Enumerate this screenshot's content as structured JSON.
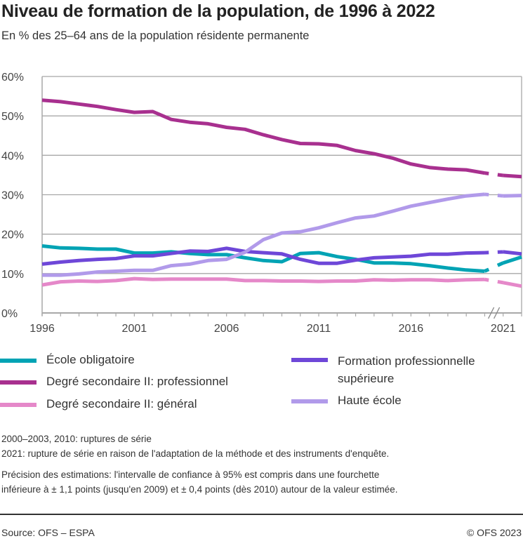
{
  "header": {
    "title": "Niveau de formation de la population, de 1996 à 2022",
    "subtitle": "En % des 25–64 ans de la population résidente permanente"
  },
  "chart_data": {
    "type": "line",
    "title": "Niveau de formation de la population, de 1996 à 2022",
    "subtitle": "En % des 25–64 ans de la population résidente permanente",
    "xlabel": "",
    "ylabel": "",
    "x": [
      1996,
      1997,
      1998,
      1999,
      2000,
      2001,
      2002,
      2003,
      2004,
      2005,
      2006,
      2007,
      2008,
      2009,
      2010,
      2011,
      2012,
      2013,
      2014,
      2015,
      2016,
      2017,
      2018,
      2019,
      2020,
      2021,
      2022
    ],
    "x_tick_labels": [
      "1996",
      "2001",
      "2006",
      "2011",
      "2016",
      "2021"
    ],
    "y_tick_labels": [
      "0%",
      "10%",
      "20%",
      "30%",
      "40%",
      "50%",
      "60%"
    ],
    "ylim": [
      0,
      60
    ],
    "grid": true,
    "axis_break": "2020–2021",
    "legend_position": "bottom",
    "series": [
      {
        "name": "École obligatoire",
        "color": "#00a3b4",
        "values": [
          17.0,
          16.5,
          16.4,
          16.2,
          16.2,
          15.2,
          15.2,
          15.5,
          15.1,
          14.8,
          14.8,
          14.0,
          13.3,
          13.0,
          15.1,
          15.3,
          14.3,
          13.6,
          12.7,
          12.7,
          12.5,
          12.0,
          11.4,
          10.9,
          10.6,
          12.7,
          14.2
        ]
      },
      {
        "name": "Degré secondaire II: professionnel",
        "color": "#a8308f",
        "values": [
          54.0,
          53.6,
          53.0,
          52.4,
          51.6,
          50.9,
          51.1,
          49.1,
          48.4,
          48.0,
          47.1,
          46.6,
          45.2,
          44.0,
          43.0,
          42.9,
          42.5,
          41.2,
          40.4,
          39.3,
          37.8,
          36.9,
          36.5,
          36.3,
          35.5,
          34.9,
          34.6
        ]
      },
      {
        "name": "Degré secondaire II: général",
        "color": "#e588c9",
        "values": [
          7.1,
          7.9,
          8.1,
          8.0,
          8.2,
          8.7,
          8.5,
          8.6,
          8.6,
          8.6,
          8.6,
          8.2,
          8.2,
          8.1,
          8.1,
          8.0,
          8.1,
          8.1,
          8.4,
          8.3,
          8.4,
          8.4,
          8.2,
          8.4,
          8.5,
          7.7,
          6.8
        ]
      },
      {
        "name": "Formation professionnelle supérieure",
        "color": "#6e47d8",
        "values": [
          12.4,
          12.9,
          13.3,
          13.6,
          13.8,
          14.5,
          14.5,
          15.1,
          15.7,
          15.6,
          16.4,
          15.6,
          15.3,
          15.0,
          13.6,
          12.6,
          12.6,
          13.4,
          14.0,
          14.2,
          14.4,
          14.9,
          14.9,
          15.2,
          15.3,
          15.5,
          15.0
        ]
      },
      {
        "name": "Haute école",
        "color": "#b19aea",
        "values": [
          9.6,
          9.6,
          9.9,
          10.4,
          10.6,
          10.8,
          10.8,
          12.0,
          12.4,
          13.3,
          13.6,
          15.4,
          18.6,
          20.3,
          20.6,
          21.6,
          22.9,
          24.1,
          24.6,
          25.8,
          27.1,
          28.0,
          28.9,
          29.7,
          30.1,
          29.7,
          29.8
        ]
      }
    ]
  },
  "legend": {
    "items": [
      {
        "label": "École obligatoire",
        "color": "#00a3b4"
      },
      {
        "label": "Degré secondaire II: professionnel",
        "color": "#a8308f"
      },
      {
        "label": "Degré secondaire II: général",
        "color": "#e588c9"
      },
      {
        "label": "Formation professionnelle supérieure",
        "color": "#6e47d8"
      },
      {
        "label": "Haute école",
        "color": "#b19aea"
      }
    ]
  },
  "notes": {
    "breaks_1": "2000–2003, 2010: ruptures de série",
    "breaks_2": "2021: rupture de série en raison de l'adaptation de la méthode et des instruments d'enquête.",
    "precision_1": "Précision des estimations: l'intervalle de confiance à 95% est compris dans une fourchette",
    "precision_2": "inférieure à ± 1,1 points (jusqu'en 2009) et ± 0,4 points (dès 2010) autour de la valeur estimée."
  },
  "footer": {
    "source": "Source: OFS – ESPA",
    "copyright": "© OFS 2023"
  }
}
